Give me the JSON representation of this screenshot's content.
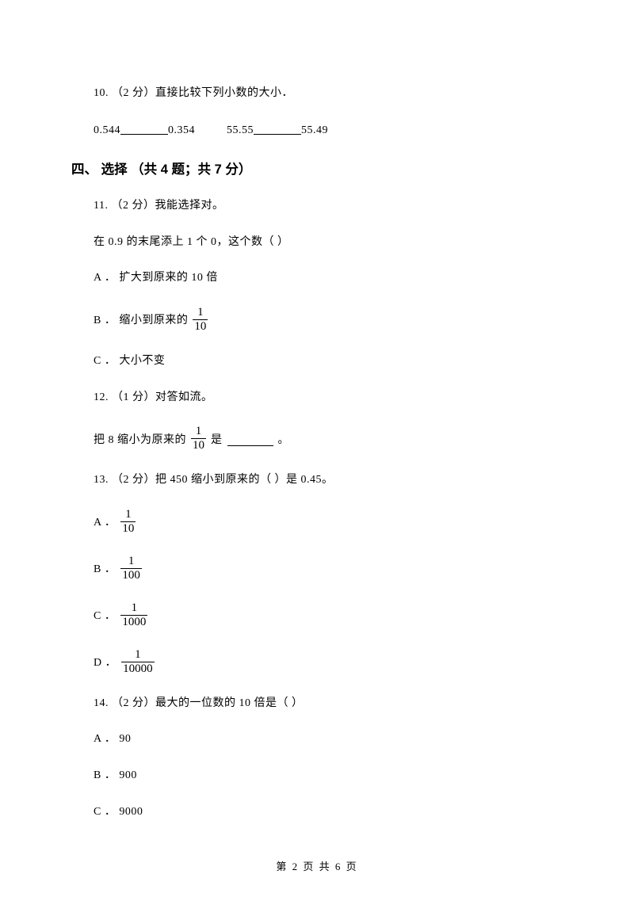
{
  "q10": {
    "head": "10.  （2 分）直接比较下列小数的大小．",
    "left1": "0.544",
    "right1": "0.354",
    "left2": "55.55",
    "right2": "55.49"
  },
  "section4": "四、 选择  （共 4 题；共 7 分）",
  "q11": {
    "head": "11.  （2 分）我能选择对。",
    "body": "在 0.9 的末尾添上 1 个 0，这个数（     ）",
    "a": "A ． 扩大到原来的 10 倍",
    "b_pre": "B ． 缩小到原来的 ",
    "b_num": "1",
    "b_den": "10",
    "c": "C ． 大小不变"
  },
  "q12": {
    "head": "12.  （1 分）对答如流。",
    "pre": "把 8 缩小为原来的 ",
    "num": "1",
    "den": "10",
    "post1": " 是",
    "post2": "。"
  },
  "q13": {
    "head": "13.  （2 分）把 450 缩小到原来的（     ）是 0.45。",
    "a_pre": "A ．",
    "a_num": "1",
    "a_den": "10",
    "b_pre": "B ．",
    "b_num": "1",
    "b_den": "100",
    "c_pre": "C ．",
    "c_num": "1",
    "c_den": "1000",
    "d_pre": "D ．",
    "d_num": "1",
    "d_den": "10000"
  },
  "q14": {
    "head": "14.  （2 分）最大的一位数的 10 倍是（     ）",
    "a": "A ． 90",
    "b": "B ． 900",
    "c": "C ． 9000"
  },
  "footer": "第 2 页 共 6 页"
}
